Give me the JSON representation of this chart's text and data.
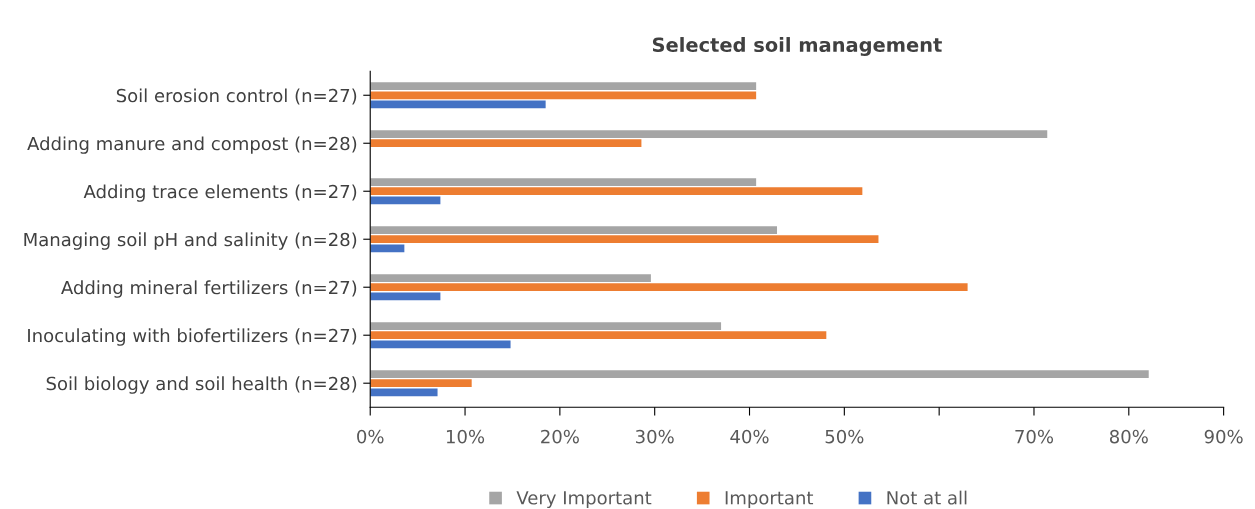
{
  "chart_data": {
    "type": "bar",
    "orientation": "horizontal",
    "title": "Selected soil management",
    "categories": [
      "Soil erosion control (n=27)",
      "Adding manure and compost (n=28)",
      "Adding trace elements (n=27)",
      "Managing soil pH and salinity (n=28)",
      "Adding mineral fertilizers (n=27)",
      "Inoculating with biofertilizers (n=27)",
      "Soil biology and soil health (n=28)"
    ],
    "series": [
      {
        "name": "Very Important",
        "color": "#a5a5a5",
        "values": [
          40.7,
          71.4,
          40.7,
          42.9,
          29.6,
          37.0,
          82.1
        ]
      },
      {
        "name": "Important",
        "color": "#ed7d31",
        "values": [
          40.7,
          28.6,
          51.9,
          53.6,
          63.0,
          48.1,
          10.7
        ]
      },
      {
        "name": "Not at all",
        "color": "#4472c4",
        "values": [
          18.5,
          0,
          7.4,
          3.6,
          7.4,
          14.8,
          7.1
        ]
      }
    ],
    "xlim": [
      0,
      90
    ],
    "xticks": [
      {
        "value": 0,
        "label": "0%"
      },
      {
        "value": 10,
        "label": "10%"
      },
      {
        "value": 20,
        "label": "20%"
      },
      {
        "value": 30,
        "label": "30%"
      },
      {
        "value": 40,
        "label": "40%"
      },
      {
        "value": 50,
        "label": "50%"
      },
      {
        "value": 60,
        "label": null
      },
      {
        "value": 70,
        "label": "70%"
      },
      {
        "value": 80,
        "label": "80%"
      },
      {
        "value": 90,
        "label": "90%"
      }
    ],
    "grid": false,
    "legend": "bottom"
  }
}
